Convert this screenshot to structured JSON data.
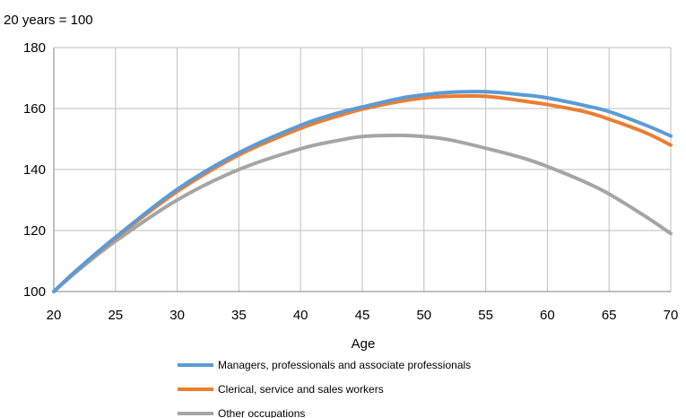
{
  "chart_data": {
    "type": "line",
    "title": "",
    "ylabel": "20 years = 100",
    "xlabel": "Age",
    "xlim": [
      20,
      70
    ],
    "ylim": [
      100,
      180
    ],
    "x_ticks": [
      20,
      25,
      30,
      35,
      40,
      45,
      50,
      55,
      60,
      65,
      70
    ],
    "y_ticks": [
      100,
      120,
      140,
      160,
      180
    ],
    "grid": true,
    "legend_position": "bottom",
    "x": [
      20,
      22,
      25,
      30,
      35,
      40,
      43,
      45,
      48,
      50,
      52,
      55,
      58,
      60,
      63,
      65,
      68,
      70
    ],
    "series": [
      {
        "name": "Managers, professionals and associate professionals",
        "color": "#5b9bd5",
        "values": [
          100,
          107.5,
          117.8,
          133.5,
          145.5,
          154.5,
          158.5,
          160.5,
          163.3,
          164.5,
          165.3,
          165.5,
          164.5,
          163.5,
          161.0,
          159.0,
          154.5,
          151.0
        ]
      },
      {
        "name": "Clerical, service and sales workers",
        "color": "#ed7d31",
        "values": [
          100,
          107.5,
          117.5,
          132.8,
          144.8,
          153.5,
          157.5,
          159.8,
          162.3,
          163.5,
          164.0,
          164.0,
          162.5,
          161.3,
          159.0,
          156.5,
          152.0,
          148.0
        ]
      },
      {
        "name": "Other occupations",
        "color": "#a5a5a5",
        "values": [
          100,
          107.0,
          116.5,
          130.0,
          140.0,
          146.8,
          149.5,
          150.8,
          151.2,
          150.8,
          149.8,
          147.0,
          143.8,
          141.0,
          136.0,
          132.0,
          124.5,
          119.0
        ]
      }
    ]
  }
}
